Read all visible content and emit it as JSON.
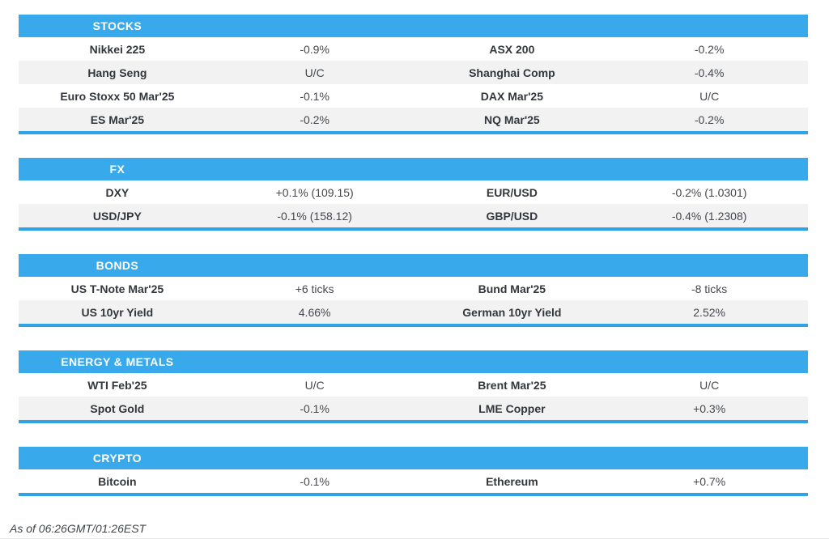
{
  "colors": {
    "header_bg": "#38aaec",
    "table_bottom_border": "#2fa3e6",
    "row_alt_bg": "#f2f2f2",
    "label_text": "#33373c",
    "value_text": "#45484d",
    "header_text": "#ffffff"
  },
  "sections": [
    {
      "title": "STOCKS",
      "rows": [
        [
          "Nikkei 225",
          "-0.9%",
          "ASX 200",
          "-0.2%"
        ],
        [
          "Hang Seng",
          "U/C",
          "Shanghai Comp",
          "-0.4%"
        ],
        [
          "Euro Stoxx 50 Mar'25",
          "-0.1%",
          "DAX Mar'25",
          "U/C"
        ],
        [
          "ES Mar'25",
          "-0.2%",
          "NQ Mar'25",
          "-0.2%"
        ]
      ]
    },
    {
      "title": "FX",
      "rows": [
        [
          "DXY",
          "+0.1% (109.15)",
          "EUR/USD",
          "-0.2% (1.0301)"
        ],
        [
          "USD/JPY",
          "-0.1% (158.12)",
          "GBP/USD",
          "-0.4% (1.2308)"
        ]
      ]
    },
    {
      "title": "BONDS",
      "rows": [
        [
          "US T-Note Mar'25",
          "+6 ticks",
          "Bund Mar'25",
          "-8 ticks"
        ],
        [
          "US 10yr Yield",
          "4.66%",
          "German 10yr Yield",
          "2.52%"
        ]
      ]
    },
    {
      "title": "ENERGY & METALS",
      "rows": [
        [
          "WTI Feb'25",
          "U/C",
          "Brent Mar'25",
          "U/C"
        ],
        [
          "Spot Gold",
          "-0.1%",
          "LME Copper",
          "+0.3%"
        ]
      ]
    },
    {
      "title": "CRYPTO",
      "rows": [
        [
          "Bitcoin",
          "-0.1%",
          "Ethereum",
          "+0.7%"
        ]
      ]
    }
  ],
  "footer": {
    "as_of": "As of 06:26GMT/01:26EST"
  }
}
